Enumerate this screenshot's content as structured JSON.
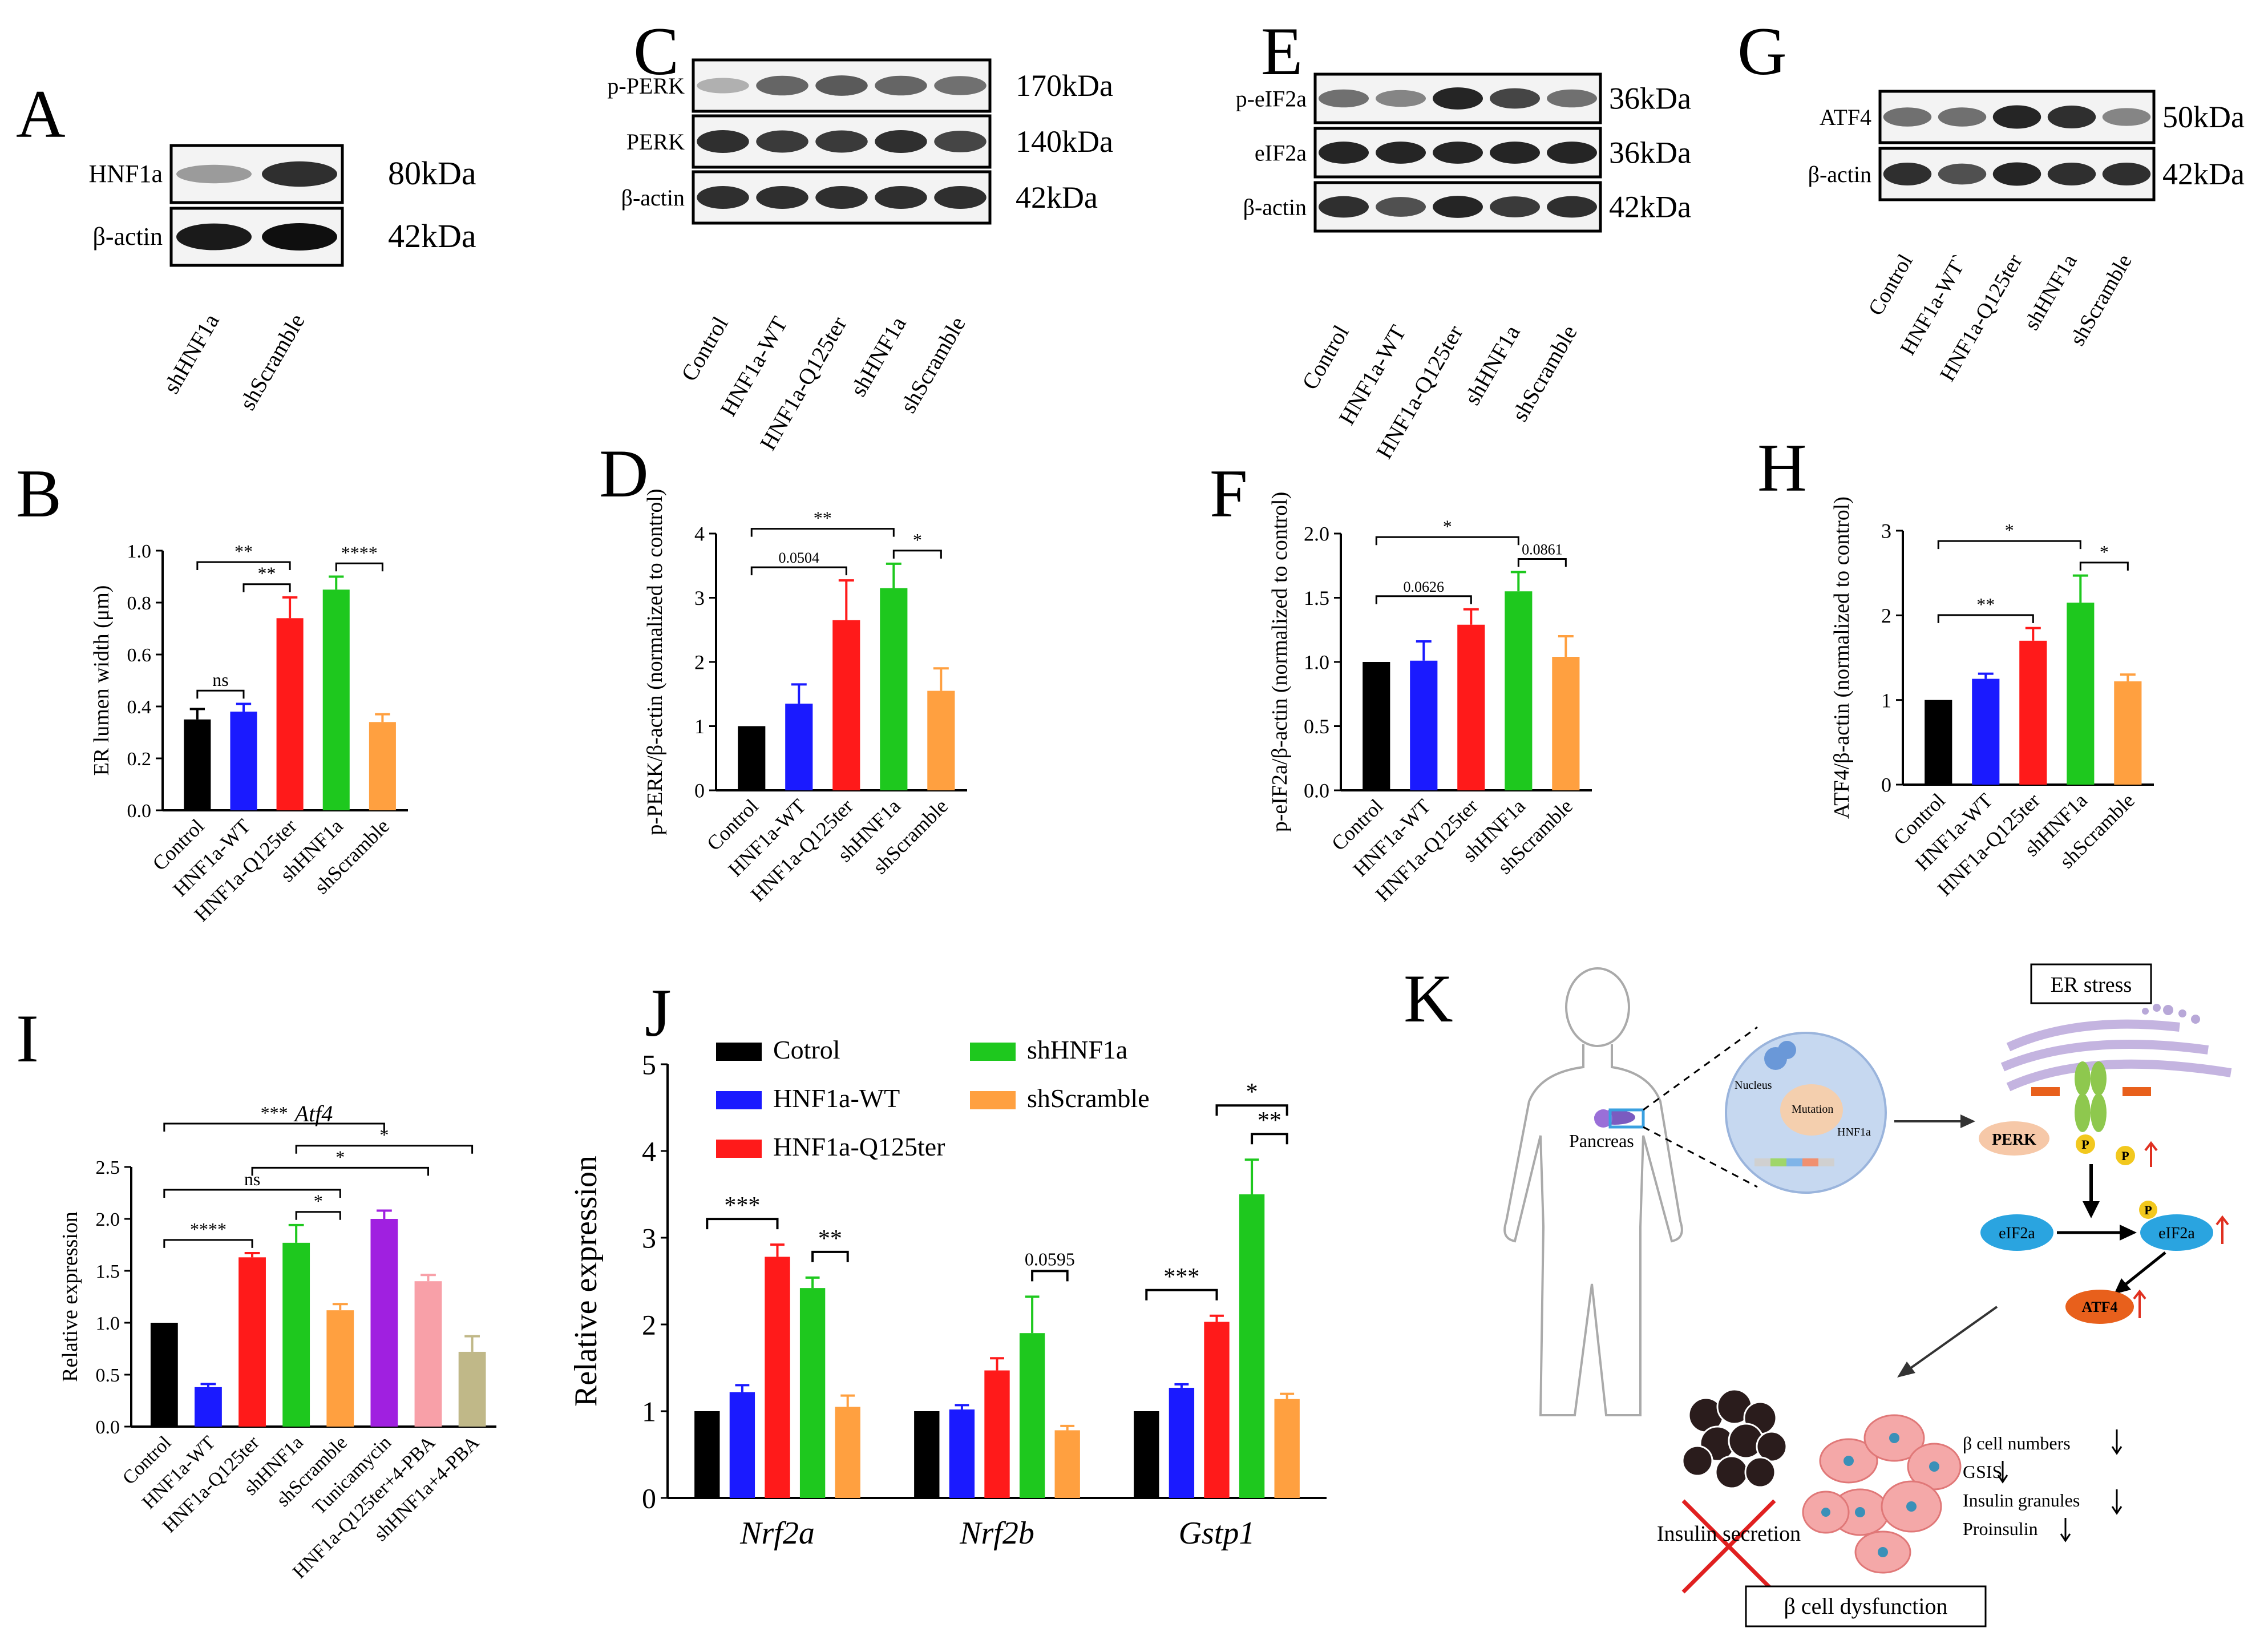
{
  "panels": {
    "A": "A",
    "B": "B",
    "C": "C",
    "D": "D",
    "E": "E",
    "F": "F",
    "G": "G",
    "H": "H",
    "I": "I",
    "J": "J",
    "K": "K"
  },
  "colors": {
    "control": "#000000",
    "wt": "#1a1aff",
    "q125": "#ff1a1a",
    "sh": "#1ec81e",
    "scr": "#ffa040",
    "tun": "#a020e0",
    "q125pba": "#f8a0a8",
    "shpba": "#c0b888"
  },
  "blots": {
    "A": {
      "rows": [
        {
          "label": "HNF1a",
          "kda": "80kDa",
          "bands": [
            0.35,
            0.85
          ]
        },
        {
          "label": "β-actin",
          "kda": "42kDa",
          "bands": [
            0.95,
            1.0
          ]
        }
      ],
      "lanes": [
        "shHNF1a",
        "shScramble"
      ]
    },
    "C": {
      "rows": [
        {
          "label": "p-PERK",
          "kda": "170kDa",
          "bands": [
            0.25,
            0.6,
            0.65,
            0.6,
            0.55
          ]
        },
        {
          "label": "PERK",
          "kda": "140kDa",
          "bands": [
            0.85,
            0.8,
            0.8,
            0.85,
            0.75
          ]
        },
        {
          "label": "β-actin",
          "kda": "42kDa",
          "bands": [
            0.85,
            0.85,
            0.85,
            0.85,
            0.85
          ]
        }
      ],
      "lanes": [
        "Control",
        "HNF1a-WT",
        "HNF1a-Q125ter",
        "shHNF1a",
        "shScramble"
      ]
    },
    "E": {
      "rows": [
        {
          "label": "p-eIF2a",
          "kda": "36kDa",
          "bands": [
            0.55,
            0.45,
            0.9,
            0.75,
            0.55
          ]
        },
        {
          "label": "eIF2a",
          "kda": "36kDa",
          "bands": [
            0.9,
            0.9,
            0.9,
            0.9,
            0.9
          ]
        },
        {
          "label": "β-actin",
          "kda": "42kDa",
          "bands": [
            0.85,
            0.7,
            0.9,
            0.8,
            0.85
          ]
        }
      ],
      "lanes": [
        "Control",
        "HNF1a-WT",
        "HNF1a-Q125ter",
        "shHNF1a",
        "shScramble"
      ]
    },
    "G": {
      "rows": [
        {
          "label": "ATF4",
          "kda": "50kDa",
          "bands": [
            0.55,
            0.55,
            0.9,
            0.85,
            0.45
          ]
        },
        {
          "label": "β-actin",
          "kda": "42kDa",
          "bands": [
            0.85,
            0.7,
            0.9,
            0.85,
            0.85
          ]
        }
      ],
      "lanes": [
        "Control",
        "HNF1a-WT`",
        "HNF1a-Q125ter",
        "shHNF1a",
        "shScramble"
      ]
    }
  },
  "chart_data": [
    {
      "panel": "B",
      "type": "bar",
      "categories": [
        "Control",
        "HNF1a-WT",
        "HNF1a-Q125ter",
        "shHNF1a",
        "shScramble"
      ],
      "values": [
        0.35,
        0.38,
        0.74,
        0.85,
        0.34
      ],
      "errors": [
        0.04,
        0.03,
        0.08,
        0.05,
        0.03
      ],
      "ylabel": "ER lumen width (μm)",
      "ylim": [
        0,
        1.0
      ],
      "yticks": [
        "0.0",
        "0.2",
        "0.4",
        "0.6",
        "0.8",
        "1.0"
      ],
      "annotations": [
        {
          "from": 0,
          "to": 1,
          "text": "ns"
        },
        {
          "from": 1,
          "to": 2,
          "text": "**"
        },
        {
          "from": 0,
          "to": 2,
          "text": "**"
        },
        {
          "from": 3,
          "to": 4,
          "text": "****"
        }
      ]
    },
    {
      "panel": "D",
      "type": "bar",
      "categories": [
        "Control",
        "HNF1a-WT",
        "HNF1a-Q125ter",
        "shHNF1a",
        "shScramble"
      ],
      "values": [
        1.0,
        1.35,
        2.65,
        3.15,
        1.55
      ],
      "errors": [
        0,
        0.3,
        0.62,
        0.38,
        0.35
      ],
      "ylabel": "p-PERK/β-actin (normalized to control)",
      "ylim": [
        0,
        4
      ],
      "yticks": [
        "0",
        "1",
        "2",
        "3",
        "4"
      ],
      "annotations": [
        {
          "from": 0,
          "to": 2,
          "text": "0.0504"
        },
        {
          "from": 0,
          "to": 3,
          "text": "**"
        },
        {
          "from": 3,
          "to": 4,
          "text": "*"
        }
      ]
    },
    {
      "panel": "F",
      "type": "bar",
      "categories": [
        "Control",
        "HNF1a-WT",
        "HNF1a-Q125ter",
        "shHNF1a",
        "shScramble"
      ],
      "values": [
        1.0,
        1.01,
        1.29,
        1.55,
        1.04
      ],
      "errors": [
        0,
        0.15,
        0.12,
        0.15,
        0.16
      ],
      "ylabel": "p-eIF2a/β-actin (normalized to control)",
      "ylim": [
        0,
        2.0
      ],
      "yticks": [
        "0.0",
        "0.5",
        "1.0",
        "1.5",
        "2.0"
      ],
      "annotations": [
        {
          "from": 0,
          "to": 2,
          "text": "0.0626"
        },
        {
          "from": 0,
          "to": 3,
          "text": "*"
        },
        {
          "from": 3,
          "to": 4,
          "text": "0.0861"
        }
      ]
    },
    {
      "panel": "H",
      "type": "bar",
      "categories": [
        "Control",
        "HNF1a-WT",
        "HNF1a-Q125ter",
        "shHNF1a",
        "shScramble"
      ],
      "values": [
        1.0,
        1.25,
        1.7,
        2.15,
        1.22
      ],
      "errors": [
        0,
        0.06,
        0.15,
        0.32,
        0.08
      ],
      "ylabel": "ATF4/β-actin (normalized to control)",
      "ylim": [
        0,
        3
      ],
      "yticks": [
        "0",
        "1",
        "2",
        "3"
      ],
      "annotations": [
        {
          "from": 0,
          "to": 2,
          "text": "**"
        },
        {
          "from": 0,
          "to": 3,
          "text": "*"
        },
        {
          "from": 3,
          "to": 4,
          "text": "*"
        }
      ]
    },
    {
      "panel": "I",
      "type": "bar",
      "title": "Atf4",
      "categories": [
        "Control",
        "HNF1a-WT",
        "HNF1a-Q125ter",
        "shHNF1a",
        "shScramble",
        "Tunicamycin",
        "HNF1a-Q125ter+4-PBA",
        "shHNF1a+4-PBA"
      ],
      "values": [
        1.0,
        0.38,
        1.63,
        1.77,
        1.12,
        2.0,
        1.4,
        0.72
      ],
      "errors": [
        0,
        0.03,
        0.04,
        0.17,
        0.06,
        0.08,
        0.06,
        0.15
      ],
      "ylabel": "Relative expression",
      "ylim": [
        0,
        2.5
      ],
      "yticks": [
        "0.0",
        "0.5",
        "1.0",
        "1.5",
        "2.0",
        "2.5"
      ],
      "annotations": [
        {
          "from": 0,
          "to": 2,
          "text": "****"
        },
        {
          "from": 3,
          "to": 4,
          "text": "*"
        },
        {
          "from": 0,
          "to": 4,
          "text": "ns"
        },
        {
          "from": 0,
          "to": 5,
          "text": "***"
        },
        {
          "from": 2,
          "to": 6,
          "text": "*"
        },
        {
          "from": 3,
          "to": 7,
          "text": "*"
        }
      ]
    },
    {
      "panel": "J",
      "type": "bar",
      "categories": [
        "Nrf2a",
        "Nrf2b",
        "Gstp1"
      ],
      "series": [
        {
          "name": "Cotrol",
          "values": [
            1.0,
            1.0,
            1.0
          ],
          "errors": [
            0,
            0,
            0
          ]
        },
        {
          "name": "HNF1a-WT",
          "values": [
            1.22,
            1.02,
            1.27
          ],
          "errors": [
            0.08,
            0.05,
            0.04
          ]
        },
        {
          "name": "HNF1a-Q125ter",
          "values": [
            2.78,
            1.47,
            2.03
          ],
          "errors": [
            0.14,
            0.14,
            0.07
          ]
        },
        {
          "name": "shHNF1a",
          "values": [
            2.42,
            1.9,
            3.5
          ],
          "errors": [
            0.12,
            0.42,
            0.4
          ]
        },
        {
          "name": "shScramble",
          "values": [
            1.05,
            0.78,
            1.14
          ],
          "errors": [
            0.13,
            0.05,
            0.06
          ]
        }
      ],
      "ylabel": "Relative expression",
      "ylim": [
        0,
        5
      ],
      "yticks": [
        "0",
        "1",
        "2",
        "3",
        "4",
        "5"
      ],
      "annotations": [
        {
          "group": 0,
          "from": 0,
          "to": 2,
          "text": "***"
        },
        {
          "group": 0,
          "from": 3,
          "to": 4,
          "text": "**"
        },
        {
          "group": 1,
          "from": 3,
          "to": 4,
          "text": "0.0595"
        },
        {
          "group": 2,
          "from": 0,
          "to": 2,
          "text": "***"
        },
        {
          "group": 2,
          "from": 3,
          "to": 4,
          "text": "**"
        },
        {
          "group": 2,
          "from": 2,
          "to": 4,
          "text": "*"
        }
      ]
    }
  ],
  "diagram": {
    "er_stress": "ER stress",
    "pancreas": "Pancreas",
    "nucleus": "Nucleus",
    "mutation": "Mutation",
    "hnf1a": "HNF1a",
    "perk": "PERK",
    "p": "P",
    "eif2a": "eIF2a",
    "atf4": "ATF4",
    "insulin_secretion": "Insulin secretion",
    "effects": [
      "β  cell numbers",
      "GSIS",
      "Insulin granules",
      "Proinsulin"
    ],
    "dysfunction": "β cell dysfunction"
  }
}
